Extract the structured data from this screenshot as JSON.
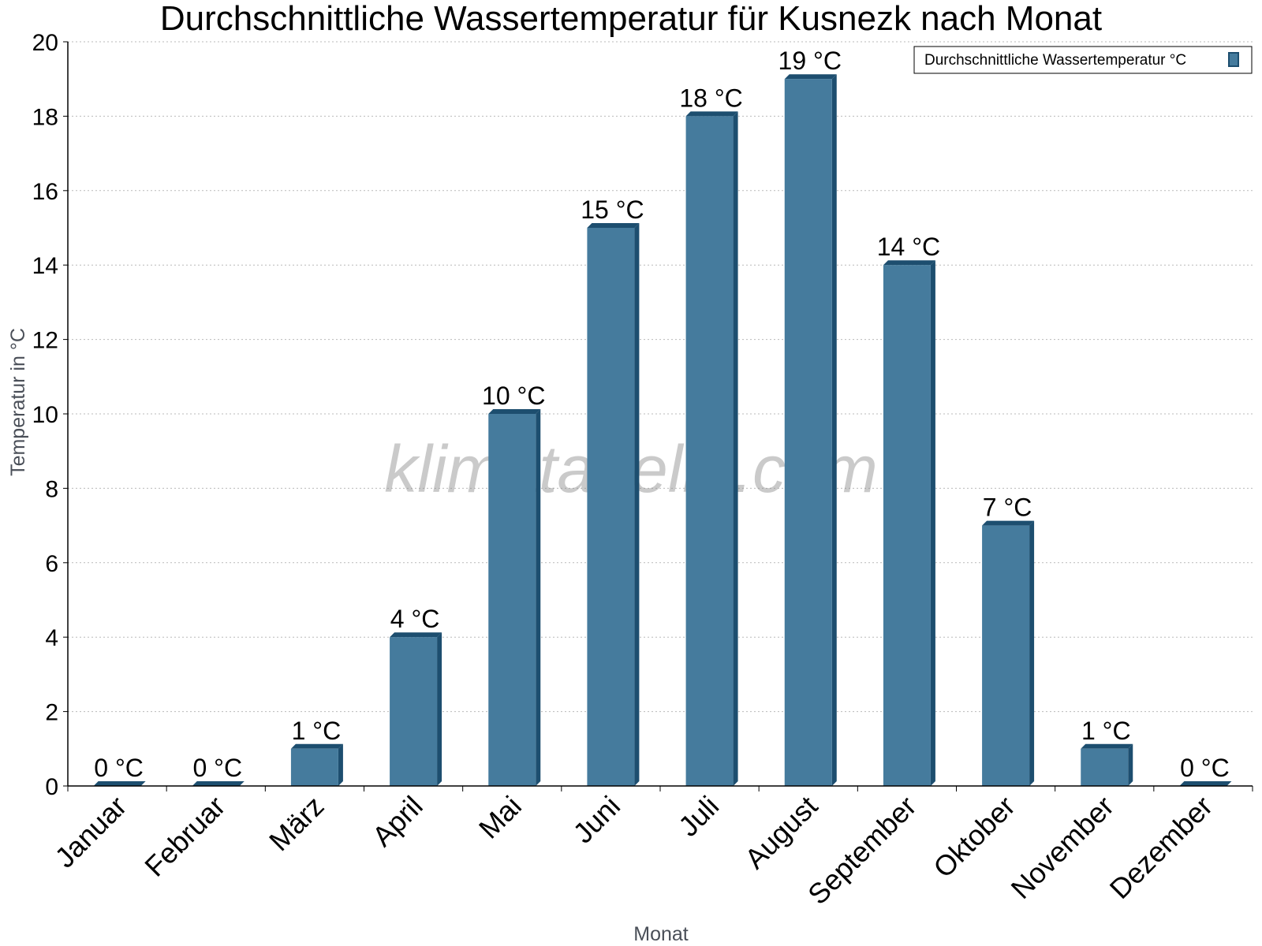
{
  "chart_data": {
    "type": "bar",
    "title": "Durchschnittliche Wassertemperatur für Kusnezk nach Monat",
    "xlabel": "Monat",
    "ylabel": "Temperatur in °C",
    "categories": [
      "Januar",
      "Februar",
      "März",
      "April",
      "Mai",
      "Juni",
      "Juli",
      "August",
      "September",
      "Oktober",
      "November",
      "Dezember"
    ],
    "series": [
      {
        "name": "Durchschnittliche Wassertemperatur °C",
        "values": [
          0,
          0,
          1,
          4,
          10,
          15,
          18,
          19,
          14,
          7,
          1,
          0
        ],
        "labels": [
          "0 °C",
          "0 °C",
          "1 °C",
          "4 °C",
          "10 °C",
          "15 °C",
          "18 °C",
          "19 °C",
          "14 °C",
          "7 °C",
          "1 °C",
          "0 °C"
        ],
        "color": "#457b9d",
        "edge_color": "#1d4e6f"
      }
    ],
    "ylim": [
      0,
      20
    ],
    "yticks": [
      0,
      2,
      4,
      6,
      8,
      10,
      12,
      14,
      16,
      18,
      20
    ],
    "grid": true,
    "legend_position": "top-right",
    "watermark": "klimatabelle.com"
  }
}
